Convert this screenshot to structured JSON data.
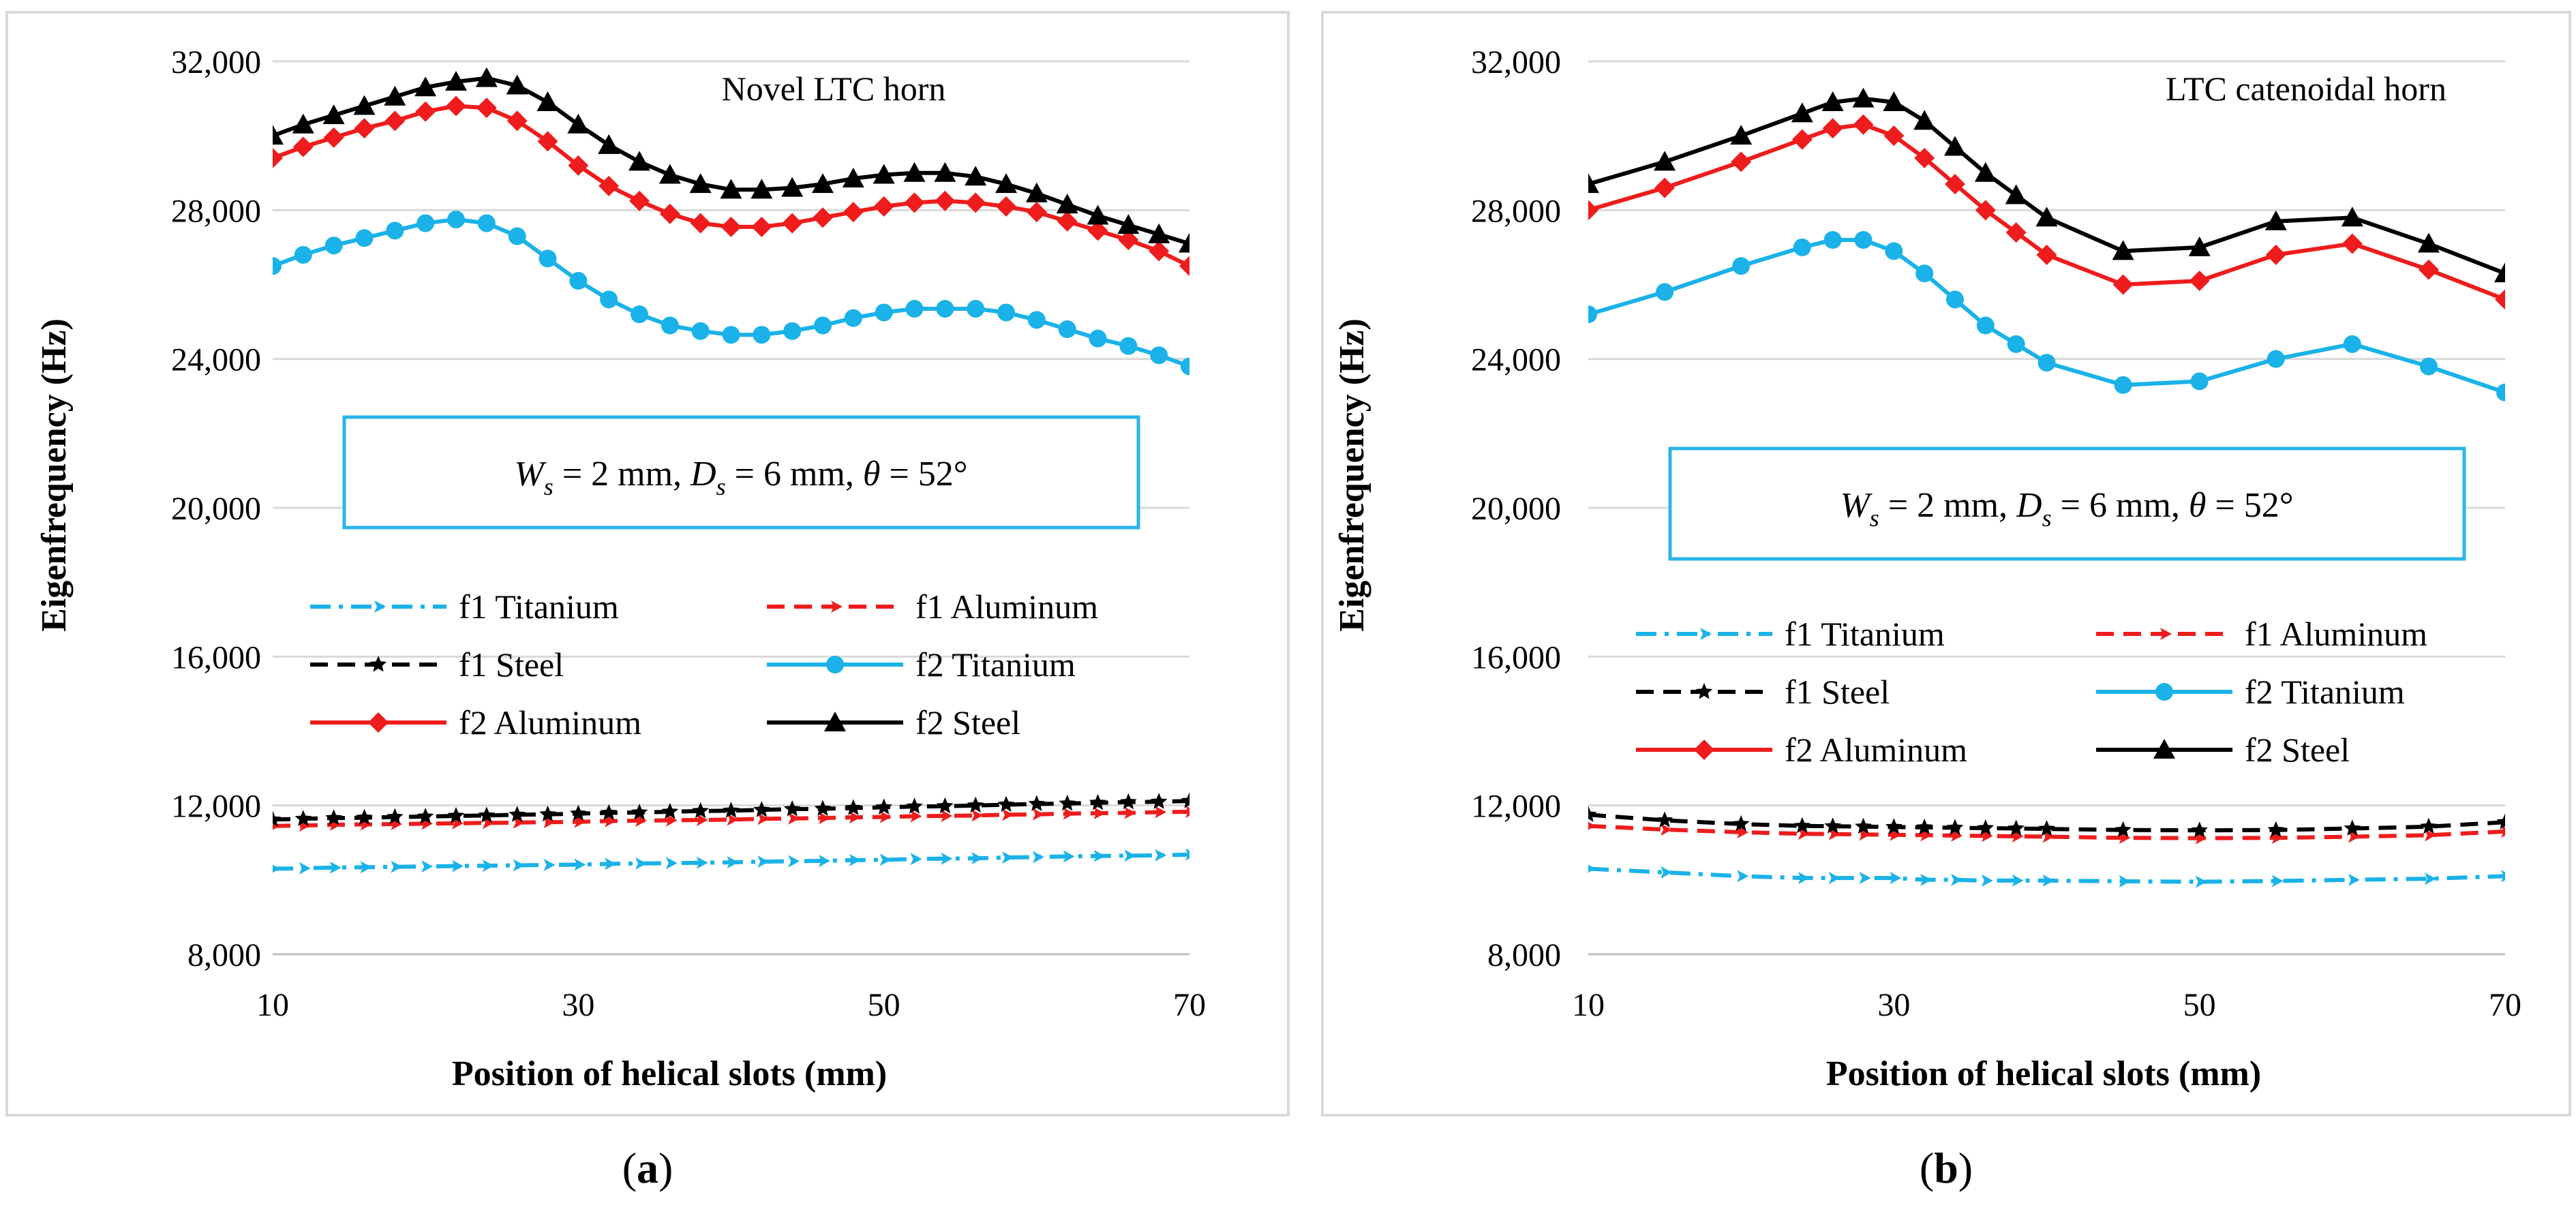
{
  "chart_data": [
    {
      "panel": "a",
      "panel_label": "a",
      "type": "line",
      "title": "Novel LTC horn",
      "xlabel": "Position of helical slots (mm)",
      "ylabel": "Eigenfrequency (Hz)",
      "xlim": [
        10,
        70
      ],
      "ylim": [
        8000,
        32000
      ],
      "x_ticks": [
        10,
        30,
        50,
        70
      ],
      "y_ticks": [
        8000,
        12000,
        16000,
        20000,
        24000,
        28000,
        32000
      ],
      "x_tick_labels": [
        "10",
        "30",
        "50",
        "70"
      ],
      "y_tick_labels": [
        "8,000",
        "12,000",
        "16,000",
        "20,000",
        "24,000",
        "28,000",
        "32,000"
      ],
      "annotation": "W_s = 2 mm, D_s = 6 mm, θ = 52°",
      "annotation_parts": [
        "W",
        "s",
        " = 2 mm, ",
        "D",
        "s",
        " = 6 mm, ",
        "θ",
        " = 52°"
      ],
      "x": [
        10,
        12,
        14,
        16,
        18,
        20,
        22,
        24,
        26,
        28,
        30,
        32,
        34,
        36,
        38,
        40,
        42,
        44,
        46,
        48,
        50,
        52,
        54,
        56,
        58,
        60,
        62,
        64,
        66,
        68,
        70
      ],
      "series": [
        {
          "name": "f1 Titanium",
          "color": "#1ab2e8",
          "dash": "dashdot",
          "marker": "arrow",
          "values": [
            10300,
            10310,
            10330,
            10340,
            10350,
            10360,
            10370,
            10380,
            10390,
            10400,
            10410,
            10430,
            10440,
            10450,
            10460,
            10470,
            10490,
            10500,
            10510,
            10530,
            10540,
            10560,
            10570,
            10580,
            10600,
            10610,
            10630,
            10640,
            10650,
            10660,
            10680
          ]
        },
        {
          "name": "f1 Aluminum",
          "color": "#ee1c1c",
          "dash": "dash",
          "marker": "arrow",
          "values": [
            11450,
            11460,
            11480,
            11490,
            11500,
            11510,
            11520,
            11530,
            11540,
            11550,
            11560,
            11580,
            11590,
            11600,
            11610,
            11620,
            11640,
            11650,
            11660,
            11680,
            11690,
            11710,
            11720,
            11730,
            11750,
            11760,
            11780,
            11790,
            11800,
            11820,
            11830
          ]
        },
        {
          "name": "f1 Steel",
          "color": "#000000",
          "dash": "dash",
          "marker": "star",
          "values": [
            11620,
            11640,
            11660,
            11670,
            11690,
            11700,
            11720,
            11730,
            11750,
            11760,
            11780,
            11800,
            11810,
            11830,
            11850,
            11860,
            11880,
            11900,
            11910,
            11930,
            11950,
            11970,
            11980,
            12000,
            12020,
            12040,
            12050,
            12070,
            12090,
            12100,
            12120
          ]
        },
        {
          "name": "f2 Titanium",
          "color": "#1ab2e8",
          "dash": "solid",
          "marker": "circle",
          "values": [
            26500,
            26800,
            27050,
            27250,
            27450,
            27650,
            27750,
            27650,
            27300,
            26700,
            26100,
            25600,
            25200,
            24900,
            24750,
            24650,
            24650,
            24750,
            24900,
            25100,
            25250,
            25350,
            25350,
            25350,
            25250,
            25050,
            24800,
            24550,
            24350,
            24100,
            23800
          ]
        },
        {
          "name": "f2 Aluminum",
          "color": "#ee1c1c",
          "dash": "solid",
          "marker": "diamond",
          "values": [
            29400,
            29700,
            29950,
            30200,
            30400,
            30650,
            30800,
            30750,
            30400,
            29850,
            29200,
            28650,
            28250,
            27900,
            27650,
            27550,
            27550,
            27650,
            27800,
            27950,
            28100,
            28200,
            28250,
            28200,
            28100,
            27950,
            27700,
            27450,
            27200,
            26900,
            26500
          ]
        },
        {
          "name": "f2 Steel",
          "color": "#000000",
          "dash": "solid",
          "marker": "triangle",
          "values": [
            30000,
            30300,
            30550,
            30800,
            31050,
            31300,
            31450,
            31550,
            31350,
            30900,
            30300,
            29750,
            29300,
            28950,
            28700,
            28550,
            28550,
            28600,
            28700,
            28850,
            28950,
            29000,
            29000,
            28900,
            28700,
            28450,
            28150,
            27850,
            27600,
            27350,
            27100
          ]
        }
      ]
    },
    {
      "panel": "b",
      "panel_label": "b",
      "type": "line",
      "title": "LTC catenoidal horn",
      "xlabel": "Position of helical slots (mm)",
      "ylabel": "Eigenfrequency (Hz)",
      "xlim": [
        10,
        70
      ],
      "ylim": [
        8000,
        32000
      ],
      "x_ticks": [
        10,
        30,
        50,
        70
      ],
      "y_ticks": [
        8000,
        12000,
        16000,
        20000,
        24000,
        28000,
        32000
      ],
      "x_tick_labels": [
        "10",
        "30",
        "50",
        "70"
      ],
      "y_tick_labels": [
        "8,000",
        "12,000",
        "16,000",
        "20,000",
        "24,000",
        "28,000",
        "32,000"
      ],
      "annotation": "W_s = 2 mm, D_s = 6 mm, θ = 52°",
      "annotation_parts": [
        "W",
        "s",
        " = 2 mm, ",
        "D",
        "s",
        " = 6 mm, ",
        "θ",
        " = 52°"
      ],
      "x": [
        10,
        15,
        20,
        24,
        26,
        28,
        30,
        32,
        34,
        36,
        38,
        40,
        45,
        50,
        55,
        60,
        65,
        70
      ],
      "series": [
        {
          "name": "f1 Titanium",
          "color": "#1ab2e8",
          "dash": "dashdot",
          "marker": "arrow",
          "values": [
            10300,
            10200,
            10100,
            10050,
            10050,
            10050,
            10050,
            10000,
            10000,
            9980,
            9980,
            9980,
            9960,
            9950,
            9970,
            10000,
            10030,
            10100
          ]
        },
        {
          "name": "f1 Aluminum",
          "color": "#ee1c1c",
          "dash": "dash",
          "marker": "arrow",
          "values": [
            11450,
            11350,
            11280,
            11240,
            11230,
            11220,
            11210,
            11200,
            11190,
            11180,
            11170,
            11160,
            11130,
            11120,
            11130,
            11160,
            11200,
            11300
          ]
        },
        {
          "name": "f1 Steel",
          "color": "#000000",
          "dash": "dash",
          "marker": "star",
          "values": [
            11750,
            11600,
            11500,
            11450,
            11440,
            11430,
            11420,
            11410,
            11400,
            11390,
            11380,
            11370,
            11340,
            11330,
            11340,
            11380,
            11430,
            11550
          ]
        },
        {
          "name": "f2 Titanium",
          "color": "#1ab2e8",
          "dash": "solid",
          "marker": "circle",
          "values": [
            25200,
            25800,
            26500,
            27000,
            27200,
            27200,
            26900,
            26300,
            25600,
            24900,
            24400,
            23900,
            23300,
            23400,
            24000,
            24400,
            23800,
            23100
          ]
        },
        {
          "name": "f2 Aluminum",
          "color": "#ee1c1c",
          "dash": "solid",
          "marker": "diamond",
          "values": [
            28000,
            28600,
            29300,
            29900,
            30200,
            30300,
            30000,
            29400,
            28700,
            28000,
            27400,
            26800,
            26000,
            26100,
            26800,
            27100,
            26400,
            25600
          ]
        },
        {
          "name": "f2 Steel",
          "color": "#000000",
          "dash": "solid",
          "marker": "triangle",
          "values": [
            28700,
            29300,
            30000,
            30600,
            30900,
            31000,
            30900,
            30400,
            29700,
            29000,
            28400,
            27800,
            26900,
            27000,
            27700,
            27800,
            27100,
            26300
          ]
        }
      ]
    }
  ]
}
